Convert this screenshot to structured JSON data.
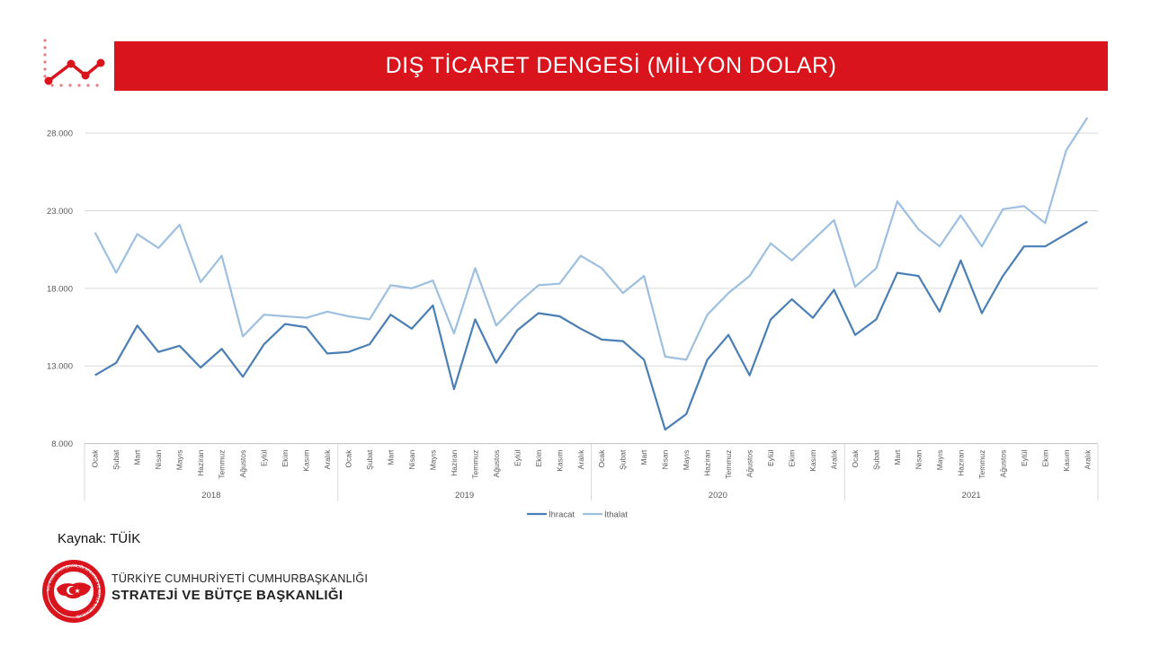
{
  "header": {
    "title": "DIŞ TİCARET DENGESİ (MİLYON DOLAR)"
  },
  "footer": {
    "source": "Kaynak: TÜİK",
    "org_line1": "TÜRKİYE CUMHURİYETİ CUMHURBAŞKANLIĞI",
    "org_line2": "STRATEJİ VE BÜTÇE BAŞKANLIĞI",
    "seal_text": "T.C. CUMHURBAŞKANLIĞI STRATEJİ VE BÜTÇE BAŞKANLIĞI"
  },
  "colors": {
    "brand_red": "#d9141d",
    "series_ihracat": "#4a7fb5",
    "series_ithalat": "#9dbfe0"
  },
  "chart_data": {
    "type": "line",
    "title": "",
    "xlabel": "",
    "ylabel": "",
    "ylim": [
      8000,
      30000
    ],
    "yticks": [
      8000,
      13000,
      18000,
      23000,
      28000
    ],
    "ytick_labels": [
      "8.000",
      "13.000",
      "18.000",
      "23.000",
      "28.000"
    ],
    "grid": true,
    "legend_position": "bottom-center",
    "years": [
      "2018",
      "2019",
      "2020",
      "2021"
    ],
    "months": [
      "Ocak",
      "Şubat",
      "Mart",
      "Nisan",
      "Mayıs",
      "Haziran",
      "Temmuz",
      "Ağustos",
      "Eylül",
      "Ekim",
      "Kasım",
      "Aralık"
    ],
    "series": [
      {
        "name": "İhracat",
        "color": "#4a7fb5",
        "values": [
          12400,
          13200,
          15600,
          13900,
          14300,
          12900,
          14100,
          12300,
          14400,
          15700,
          15500,
          13800,
          13900,
          14400,
          16300,
          15400,
          16900,
          11500,
          16000,
          13200,
          15300,
          16400,
          16200,
          15400,
          14700,
          14600,
          13400,
          8900,
          9900,
          13400,
          15000,
          12400,
          16000,
          17300,
          16100,
          17900,
          15000,
          16000,
          19000,
          18800,
          16500,
          19800,
          16400,
          18800,
          20700,
          20700,
          21500,
          22300
        ]
      },
      {
        "name": "İthalat",
        "color": "#9dbfe0",
        "values": [
          21600,
          19000,
          21500,
          20600,
          22100,
          18400,
          20100,
          14900,
          16300,
          16200,
          16100,
          16500,
          16200,
          16000,
          18200,
          18000,
          18500,
          15100,
          19300,
          15600,
          17000,
          18200,
          18300,
          20100,
          19300,
          17700,
          18800,
          13600,
          13400,
          16300,
          17700,
          18800,
          20900,
          19800,
          21100,
          22400,
          18100,
          19300,
          23600,
          21800,
          20700,
          22700,
          20700,
          23100,
          23300,
          22200,
          26900,
          29000
        ]
      }
    ]
  }
}
